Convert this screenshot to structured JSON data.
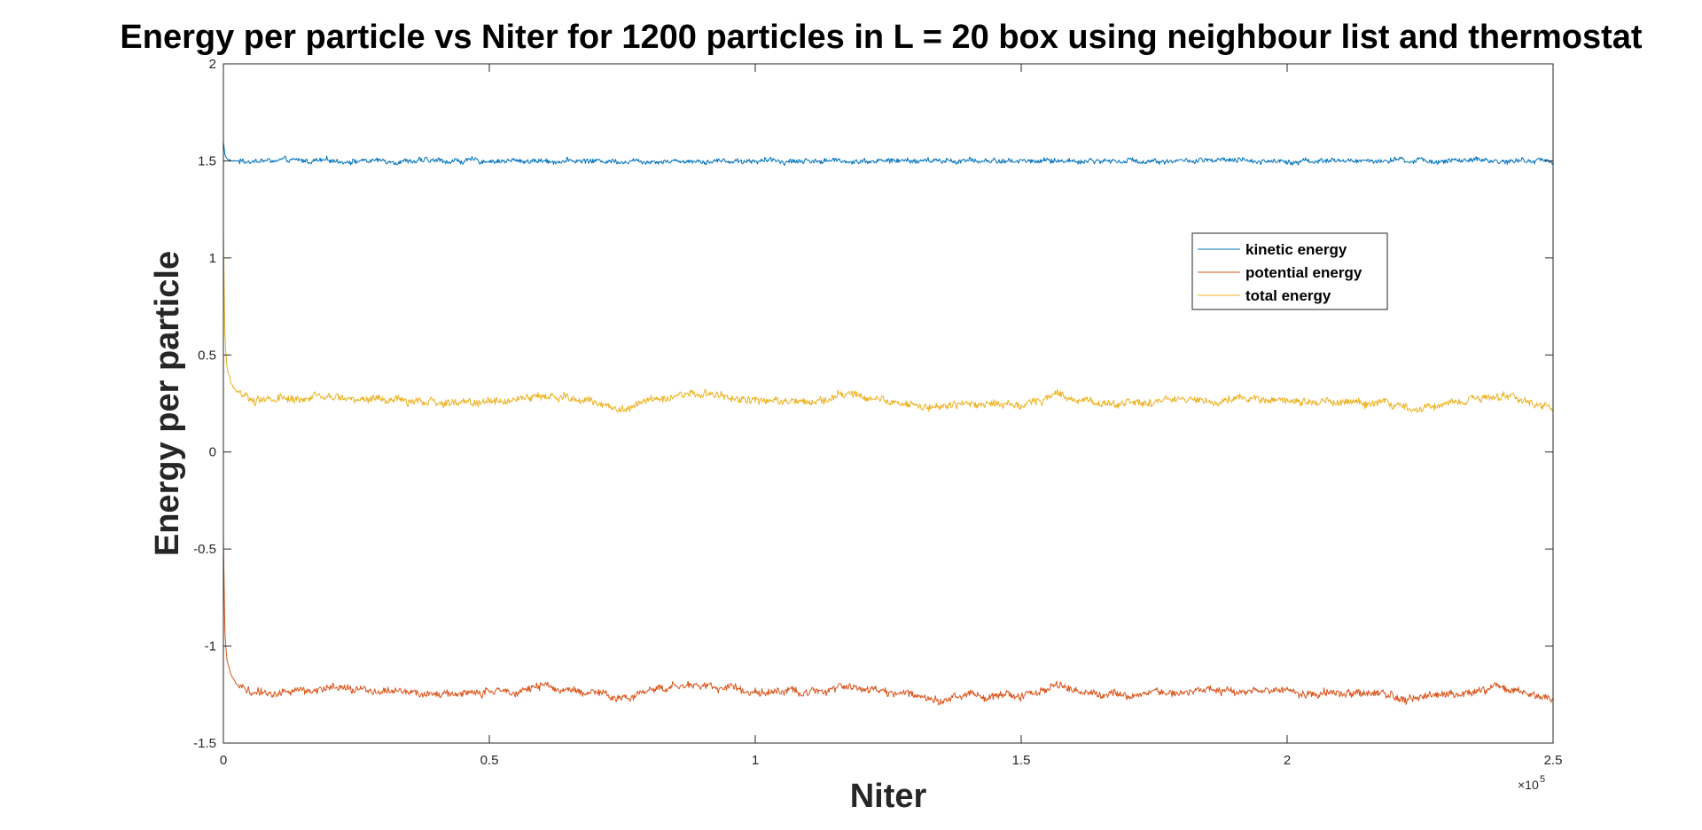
{
  "chart_data": {
    "type": "line",
    "title": "Energy per particle vs Niter for 1200 particles in L = 20 box using neighbour list and thermostat",
    "xlabel": "Niter",
    "ylabel": "Energy per particle",
    "xlim": [
      0,
      250000
    ],
    "ylim": [
      -1.5,
      2
    ],
    "x_ticks": [
      0,
      50000,
      100000,
      150000,
      200000,
      250000
    ],
    "x_tick_labels": [
      "0",
      "0.5",
      "1",
      "1.5",
      "2",
      "2.5"
    ],
    "x_exponent_label": "×10",
    "x_exponent_power": "5",
    "y_ticks": [
      -1.5,
      -1,
      -0.5,
      0,
      0.5,
      1,
      1.5,
      2
    ],
    "y_tick_labels": [
      "-1.5",
      "-1",
      "-0.5",
      "0",
      "0.5",
      "1",
      "1.5",
      "2"
    ],
    "grid": false,
    "legend_position": "top-right",
    "series": [
      {
        "name": "kinetic energy",
        "color": "#0072BD",
        "x": [
          0,
          300,
          700,
          1500,
          3000,
          6000,
          20000,
          50000,
          80000,
          110000,
          140000,
          170000,
          200000,
          230000,
          250000
        ],
        "values": [
          1.6,
          1.53,
          1.51,
          1.5,
          1.5,
          1.5,
          1.5,
          1.5,
          1.5,
          1.5,
          1.5,
          1.5,
          1.5,
          1.5,
          1.5
        ],
        "noise": 0.012
      },
      {
        "name": "potential energy",
        "color": "#D95319",
        "x": [
          0,
          300,
          700,
          1500,
          2500,
          4000,
          6000,
          10000,
          20000,
          30000,
          40000,
          50000,
          60000,
          70000,
          75000,
          80000,
          90000,
          100000,
          110000,
          117000,
          125000,
          135000,
          140000,
          150000,
          157000,
          165000,
          175000,
          185000,
          195000,
          205000,
          215000,
          225000,
          235000,
          240000,
          245000,
          250000
        ],
        "values": [
          -0.45,
          -0.95,
          -1.08,
          -1.15,
          -1.2,
          -1.22,
          -1.24,
          -1.24,
          -1.22,
          -1.23,
          -1.25,
          -1.24,
          -1.21,
          -1.24,
          -1.28,
          -1.22,
          -1.2,
          -1.23,
          -1.24,
          -1.2,
          -1.24,
          -1.27,
          -1.25,
          -1.26,
          -1.2,
          -1.25,
          -1.24,
          -1.23,
          -1.23,
          -1.24,
          -1.25,
          -1.27,
          -1.23,
          -1.21,
          -1.24,
          -1.28
        ],
        "noise": 0.018
      },
      {
        "name": "total energy",
        "color": "#EDB120",
        "x": [
          0,
          300,
          700,
          1500,
          2500,
          4000,
          6000,
          10000,
          20000,
          30000,
          40000,
          50000,
          60000,
          70000,
          75000,
          80000,
          90000,
          100000,
          110000,
          117000,
          125000,
          135000,
          140000,
          150000,
          157000,
          165000,
          175000,
          185000,
          195000,
          205000,
          215000,
          225000,
          235000,
          240000,
          245000,
          250000
        ],
        "values": [
          1.12,
          0.58,
          0.43,
          0.35,
          0.31,
          0.29,
          0.27,
          0.27,
          0.28,
          0.27,
          0.25,
          0.26,
          0.29,
          0.26,
          0.22,
          0.28,
          0.3,
          0.27,
          0.26,
          0.3,
          0.26,
          0.23,
          0.25,
          0.24,
          0.3,
          0.25,
          0.26,
          0.27,
          0.27,
          0.26,
          0.25,
          0.23,
          0.27,
          0.29,
          0.26,
          0.22
        ],
        "noise": 0.018
      }
    ]
  }
}
